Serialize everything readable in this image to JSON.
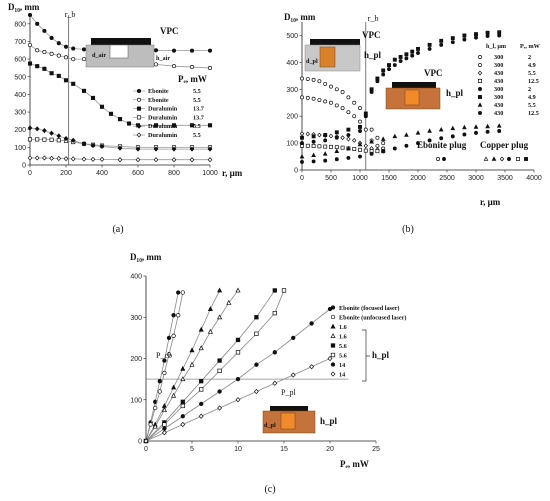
{
  "chart_data": [
    {
      "panel": "(a)",
      "type": "scatter",
      "ylabel": "D₁₀, mm",
      "xlabel": "r, μm",
      "xlim": [
        0,
        1000
      ],
      "ylim": [
        0,
        850
      ],
      "xticks": [
        0,
        200,
        400,
        600,
        800,
        1000
      ],
      "yticks": [
        0,
        100,
        200,
        300,
        400,
        500,
        600,
        700,
        800
      ],
      "grid": false,
      "annotations": {
        "rb": "r_b",
        "vpc": "VPC",
        "dair": "d_air",
        "hair": "h_air"
      },
      "legend_title": "Pₑ, mW",
      "series": [
        {
          "name": "Ebonite",
          "pe": "5.5",
          "marker": "circle-filled",
          "connected": true,
          "x": [
            0,
            40,
            80,
            120,
            160,
            200,
            240,
            300,
            350,
            400,
            500,
            600,
            700,
            800,
            900,
            1000
          ],
          "y": [
            850,
            800,
            760,
            720,
            690,
            670,
            660,
            655,
            655,
            655,
            650,
            650,
            650,
            648,
            648,
            648
          ]
        },
        {
          "name": "Ebonite",
          "pe": "5.5",
          "marker": "circle-open",
          "connected": true,
          "x": [
            0,
            40,
            80,
            120,
            160,
            200,
            240,
            300,
            350,
            400,
            500,
            600,
            700,
            800,
            900,
            1000
          ],
          "y": [
            680,
            650,
            640,
            630,
            620,
            610,
            600,
            600,
            595,
            590,
            590,
            580,
            570,
            560,
            555,
            550
          ]
        },
        {
          "name": "Duralumin",
          "pe": "13.7",
          "marker": "square-filled",
          "connected": true,
          "x": [
            0,
            40,
            80,
            120,
            160,
            200,
            240,
            300,
            350,
            400,
            450,
            500,
            550,
            600,
            700,
            800,
            900,
            1000
          ],
          "y": [
            575,
            560,
            545,
            520,
            505,
            480,
            460,
            420,
            380,
            330,
            290,
            260,
            235,
            225,
            225,
            225,
            225,
            225
          ]
        },
        {
          "name": "Duralumin",
          "pe": "13.7",
          "marker": "square-open",
          "connected": true,
          "x": [
            0,
            40,
            80,
            120,
            160,
            200,
            240,
            300,
            350,
            400,
            500,
            600,
            700,
            800,
            900,
            1000
          ],
          "y": [
            145,
            145,
            144,
            143,
            140,
            137,
            130,
            120,
            115,
            110,
            105,
            100,
            100,
            100,
            100,
            100
          ]
        },
        {
          "name": "Duralumin",
          "pe": "5.5",
          "marker": "diamond-filled",
          "connected": true,
          "x": [
            0,
            40,
            80,
            120,
            160,
            200,
            240,
            300,
            350,
            400,
            500,
            600,
            700,
            800,
            900,
            1000
          ],
          "y": [
            210,
            205,
            195,
            180,
            165,
            150,
            140,
            120,
            110,
            105,
            95,
            90,
            90,
            90,
            90,
            90
          ]
        },
        {
          "name": "Duralumin",
          "pe": "5.5",
          "marker": "diamond-open",
          "connected": true,
          "x": [
            0,
            40,
            80,
            120,
            160,
            200,
            240,
            300,
            350,
            400,
            500,
            600,
            700,
            800,
            900,
            1000
          ],
          "y": [
            40,
            40,
            40,
            38,
            37,
            36,
            35,
            33,
            32,
            32,
            30,
            30,
            30,
            30,
            30,
            30
          ]
        }
      ]
    },
    {
      "panel": "(b)",
      "type": "scatter",
      "ylabel": "D₁₀, mm",
      "xlabel": "r, μm",
      "xlim": [
        0,
        4000
      ],
      "ylim": [
        0,
        550
      ],
      "xticks": [
        0,
        500,
        1000,
        1500,
        2000,
        2500,
        3000,
        3500,
        4000
      ],
      "yticks": [
        0,
        100,
        200,
        300,
        400,
        500
      ],
      "grid": false,
      "annotations": {
        "rb": "r_b",
        "vpc_top": "VPC",
        "vpc_mid": "VPC",
        "dpl": "d_pl",
        "hpl_top": "h_pl",
        "hpl_mid": "h_pl"
      },
      "legend_header": [
        "h_l, μm",
        "Pₑ, mW"
      ],
      "legend_rows": [
        {
          "marker": "circle-open",
          "h": "300",
          "pe": "2"
        },
        {
          "marker": "circle-open",
          "h": "300",
          "pe": "4.9"
        },
        {
          "marker": "diamond-open",
          "h": "430",
          "pe": "5.5"
        },
        {
          "marker": "square-open",
          "h": "430",
          "pe": "12.5"
        },
        {
          "marker": "circle-filled",
          "h": "300",
          "pe": "2"
        },
        {
          "marker": "square-filled",
          "h": "300",
          "pe": "4.9"
        },
        {
          "marker": "triangle-filled",
          "h": "430",
          "pe": "5.5"
        },
        {
          "marker": "circle-filled",
          "h": "430",
          "pe": "12.5"
        }
      ],
      "plug_labels": {
        "ebonite": "Ebonite plug",
        "copper": "Copper plug"
      },
      "series": [
        {
          "marker": "circle-open",
          "connected": false,
          "x": [
            0,
            100,
            200,
            300,
            400,
            500,
            600,
            700,
            800,
            900,
            1000,
            1100,
            1200,
            1300,
            1400
          ],
          "y": [
            340,
            338,
            335,
            330,
            320,
            310,
            300,
            290,
            270,
            250,
            230,
            200,
            150,
            120,
            100
          ]
        },
        {
          "marker": "circle-open",
          "connected": false,
          "x": [
            0,
            100,
            200,
            300,
            400,
            500,
            600,
            700,
            800,
            900,
            1000,
            1100,
            1200,
            1300,
            1400
          ],
          "y": [
            270,
            268,
            265,
            260,
            255,
            250,
            240,
            230,
            215,
            200,
            180,
            150,
            110,
            90,
            80
          ]
        },
        {
          "marker": "diamond-open",
          "connected": false,
          "x": [
            0,
            100,
            200,
            300,
            400,
            500,
            600,
            700,
            800,
            900,
            1000,
            1100,
            1200,
            1300,
            1400
          ],
          "y": [
            135,
            134,
            132,
            130,
            128,
            126,
            124,
            120,
            115,
            110,
            100,
            90,
            80,
            75,
            70
          ]
        },
        {
          "marker": "square-open",
          "connected": false,
          "x": [
            0,
            100,
            200,
            300,
            400,
            500,
            600,
            700,
            800,
            900,
            1000,
            1100,
            1200,
            1300,
            1400
          ],
          "y": [
            90,
            90,
            89,
            88,
            87,
            86,
            85,
            83,
            80,
            78,
            75,
            72,
            70,
            70,
            70
          ]
        },
        {
          "marker": "square-filled",
          "connected": false,
          "x": [
            0,
            200,
            400,
            600,
            800,
            1000,
            1100,
            1200,
            1300,
            1400,
            1500,
            1600,
            1700,
            1800,
            1900,
            2000,
            2200,
            2400,
            2600,
            2800,
            3000,
            3200,
            3400
          ],
          "y": [
            120,
            125,
            130,
            140,
            150,
            160,
            210,
            300,
            340,
            370,
            390,
            410,
            420,
            430,
            440,
            450,
            465,
            480,
            490,
            500,
            505,
            510,
            512
          ]
        },
        {
          "marker": "circle-filled",
          "connected": false,
          "x": [
            0,
            200,
            400,
            600,
            800,
            1000,
            1100,
            1200,
            1300,
            1400,
            1500,
            1600,
            1700,
            1800,
            1900,
            2000,
            2200,
            2400,
            2600,
            2800,
            3000,
            3200,
            3400
          ],
          "y": [
            100,
            105,
            110,
            120,
            130,
            145,
            200,
            290,
            330,
            355,
            375,
            390,
            405,
            415,
            425,
            435,
            450,
            465,
            475,
            485,
            492,
            498,
            500
          ]
        },
        {
          "marker": "triangle-filled",
          "connected": false,
          "x": [
            0,
            200,
            400,
            600,
            800,
            1000,
            1200,
            1400,
            1600,
            1800,
            2000,
            2200,
            2400,
            2600,
            2800,
            3000,
            3200,
            3400
          ],
          "y": [
            50,
            55,
            60,
            70,
            80,
            95,
            105,
            115,
            125,
            130,
            138,
            145,
            150,
            155,
            158,
            160,
            162,
            164
          ]
        },
        {
          "marker": "circle-filled",
          "connected": false,
          "x": [
            0,
            200,
            400,
            600,
            800,
            1000,
            1200,
            1400,
            1600,
            1800,
            2000,
            2200,
            2400,
            2600,
            2800,
            3000,
            3200,
            3400
          ],
          "y": [
            30,
            32,
            35,
            40,
            45,
            50,
            60,
            70,
            80,
            90,
            100,
            110,
            118,
            125,
            132,
            138,
            142,
            145
          ]
        }
      ]
    },
    {
      "panel": "(c)",
      "type": "line",
      "ylabel": "D₁₀, mm",
      "xlabel": "Pₑ, mW",
      "xlim": [
        0,
        25
      ],
      "ylim": [
        0,
        400
      ],
      "xticks": [
        0,
        5,
        10,
        15,
        20,
        25
      ],
      "yticks": [
        0,
        100,
        200,
        300,
        400
      ],
      "grid": false,
      "reference_line_y": 150,
      "annotations": {
        "pcb": "P_cb",
        "ppl": "P_pl",
        "hpl_bracket": "h_pl",
        "hpl_box": "h_pl",
        "dpl": "d_pl"
      },
      "legend_labels": [
        "Ebonite (focused laser)",
        "Ebonite (unfocused laser)",
        "1.6",
        "1.6",
        "5.6",
        "5.6",
        "14",
        "14"
      ],
      "series": [
        {
          "name": "Ebonite (focused laser)",
          "marker": "circle-filled",
          "x": [
            0,
            0.5,
            1,
            1.5,
            2,
            2.5,
            3,
            3.5
          ],
          "y": [
            0,
            45,
            95,
            145,
            195,
            250,
            305,
            360
          ]
        },
        {
          "name": "Ebonite (unfocused laser)",
          "marker": "circle-open",
          "x": [
            0,
            0.5,
            1,
            1.5,
            2,
            2.5,
            3,
            3.5,
            4
          ],
          "y": [
            0,
            40,
            80,
            120,
            165,
            210,
            255,
            305,
            360
          ]
        },
        {
          "name": "1.6",
          "marker": "triangle-filled",
          "x": [
            0,
            1,
            2,
            3,
            4,
            5,
            6,
            7,
            8
          ],
          "y": [
            0,
            40,
            85,
            130,
            175,
            220,
            270,
            320,
            365
          ]
        },
        {
          "name": "1.6",
          "marker": "triangle-open",
          "x": [
            0,
            1,
            2,
            3,
            4,
            5,
            6,
            7,
            8,
            9,
            10
          ],
          "y": [
            0,
            35,
            75,
            110,
            150,
            185,
            225,
            265,
            300,
            335,
            365
          ]
        },
        {
          "name": "5.6",
          "marker": "square-filled",
          "x": [
            0,
            2,
            4,
            6,
            8,
            10,
            12,
            14
          ],
          "y": [
            0,
            45,
            95,
            145,
            195,
            245,
            300,
            365
          ]
        },
        {
          "name": "5.6",
          "marker": "square-open",
          "x": [
            0,
            2,
            4,
            6,
            8,
            10,
            12,
            14,
            15
          ],
          "y": [
            0,
            40,
            85,
            125,
            170,
            215,
            260,
            310,
            365
          ]
        },
        {
          "name": "14",
          "marker": "circle-filled",
          "x": [
            0,
            2,
            4,
            6,
            8,
            10,
            12,
            14,
            16,
            18,
            20
          ],
          "y": [
            0,
            30,
            60,
            90,
            120,
            150,
            185,
            215,
            250,
            285,
            320
          ]
        },
        {
          "name": "14",
          "marker": "diamond-open",
          "x": [
            0,
            2,
            4,
            6,
            8,
            10,
            12,
            14,
            16,
            18,
            20
          ],
          "y": [
            0,
            20,
            40,
            60,
            80,
            100,
            120,
            140,
            160,
            180,
            200
          ]
        }
      ]
    }
  ],
  "captions": {
    "a": "(a)",
    "b": "(b)",
    "c": "(c)"
  }
}
